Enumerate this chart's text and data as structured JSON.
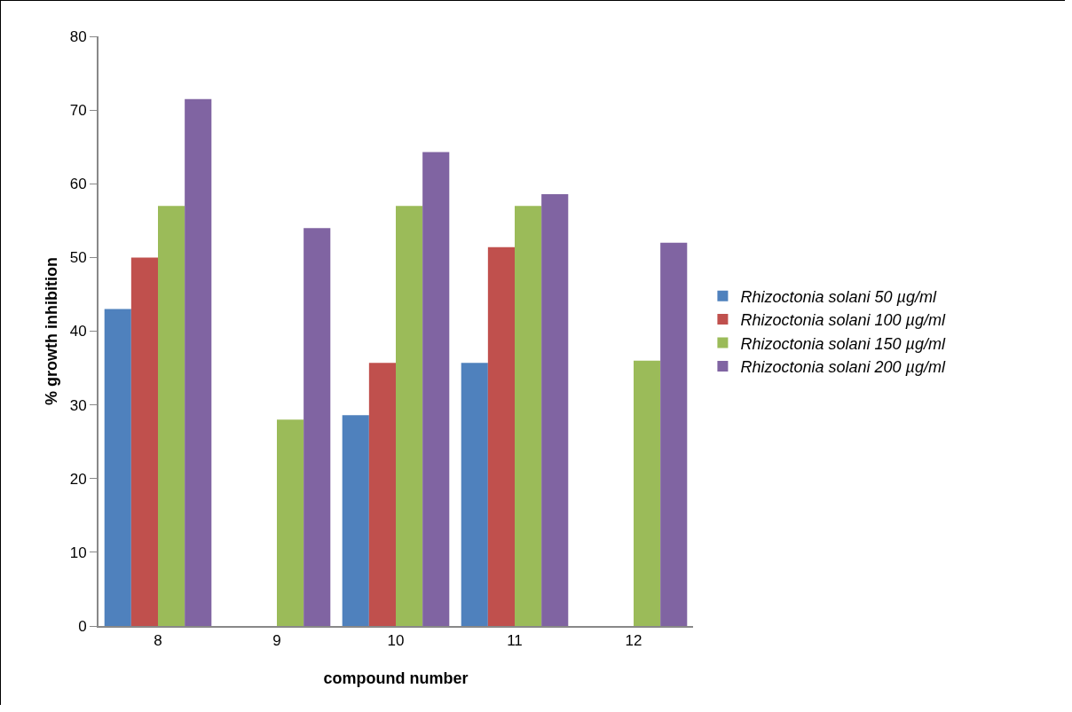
{
  "chart_data": {
    "type": "bar",
    "xlabel": "compound number",
    "ylabel": "% growth inhibition",
    "categories": [
      "8",
      "9",
      "10",
      "11",
      "12"
    ],
    "series": [
      {
        "name": "Rhizoctonia solani 50 µg/ml",
        "color": "#4f81bd",
        "values": [
          43,
          0,
          28.6,
          35.7,
          0
        ]
      },
      {
        "name": "Rhizoctonia solani 100 µg/ml",
        "color": "#c0504d",
        "values": [
          50,
          0,
          35.7,
          51.4,
          0
        ]
      },
      {
        "name": "Rhizoctonia solani 150 µg/ml",
        "color": "#9bbb59",
        "values": [
          57,
          28,
          57,
          57,
          36
        ]
      },
      {
        "name": "Rhizoctonia solani 200 µg/ml",
        "color": "#8064a2",
        "values": [
          71.5,
          54,
          64.3,
          58.6,
          52
        ]
      }
    ],
    "ylim": [
      0,
      80
    ],
    "yticks": [
      0,
      10,
      20,
      30,
      40,
      50,
      60,
      70,
      80
    ],
    "grid": false,
    "legend": "right"
  }
}
